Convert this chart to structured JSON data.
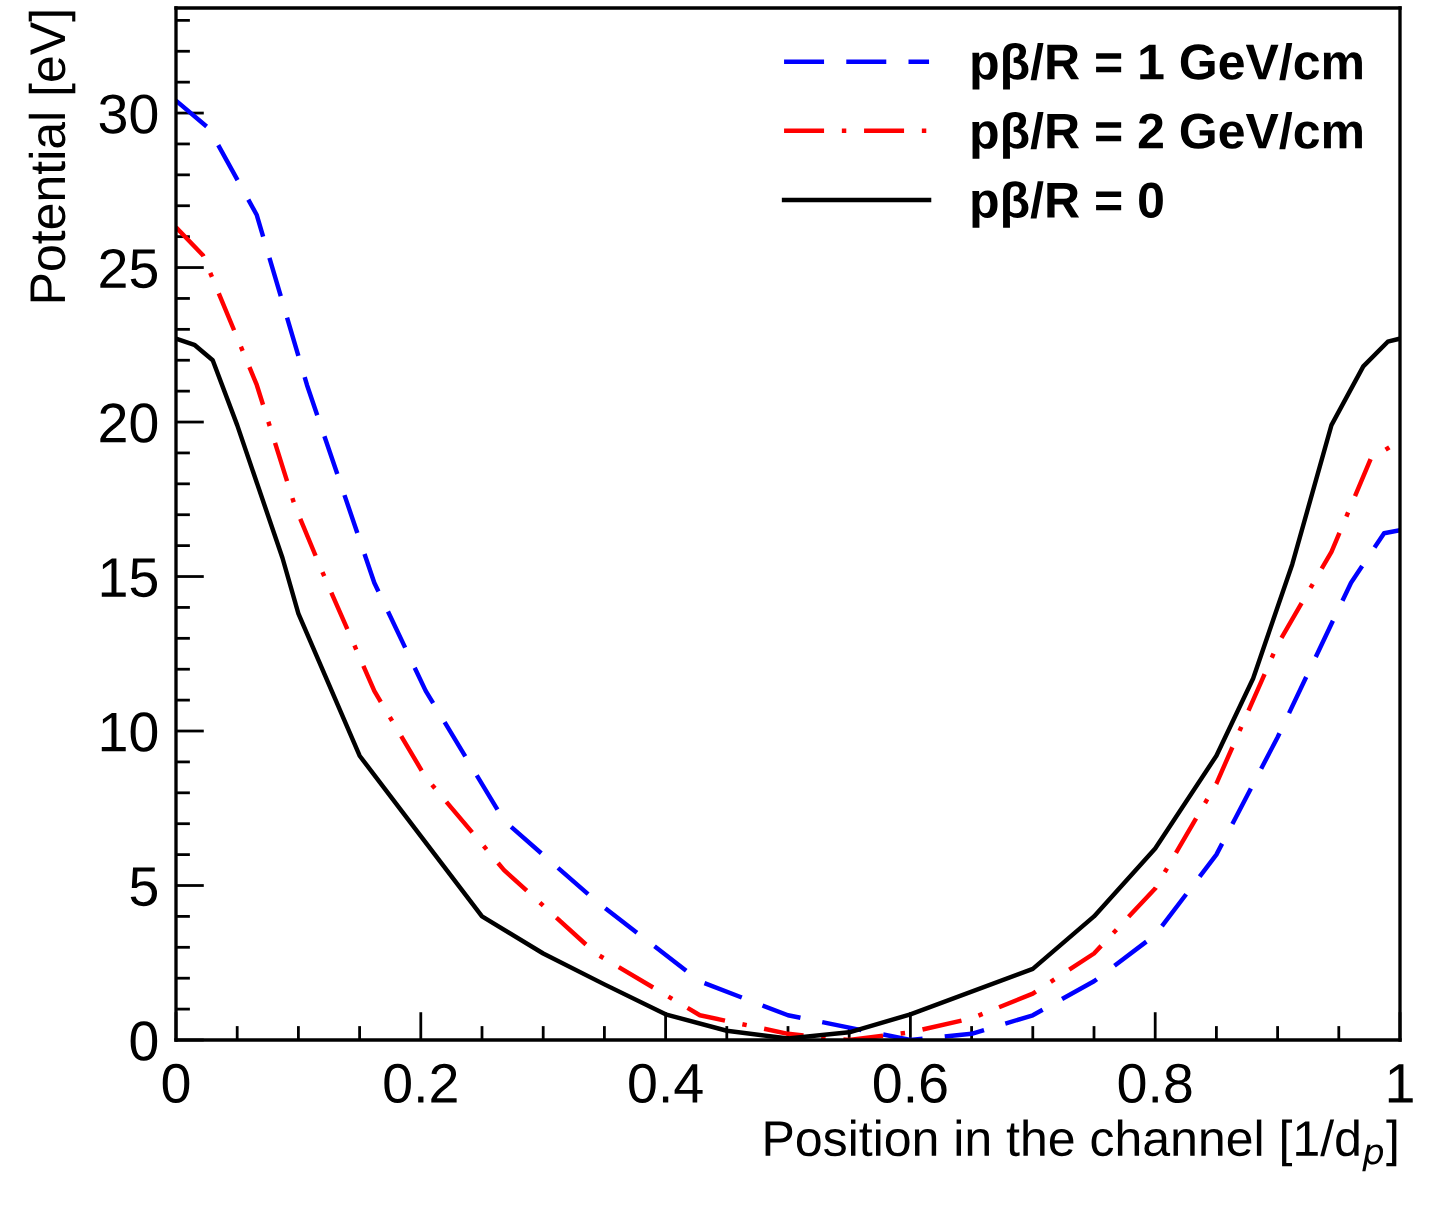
{
  "chart_data": {
    "type": "line",
    "xlabel": "Position in the channel [1/d$_{p}$]",
    "ylabel": "Potential [eV]",
    "xlim": [
      0,
      1
    ],
    "ylim": [
      0,
      33.4
    ],
    "xticks": [
      0,
      {
        "value": 0.05,
        "label": null
      },
      {
        "value": 0.1,
        "label": null
      },
      {
        "value": 0.15,
        "label": null
      },
      {
        "value": 0.2,
        "label": "0.2"
      },
      {
        "value": 0.25,
        "label": null
      },
      {
        "value": 0.3,
        "label": null
      },
      {
        "value": 0.35,
        "label": null
      },
      {
        "value": 0.4,
        "label": "0.4"
      },
      {
        "value": 0.45,
        "label": null
      },
      {
        "value": 0.5,
        "label": null
      },
      {
        "value": 0.55,
        "label": null
      },
      {
        "value": 0.6,
        "label": "0.6"
      },
      {
        "value": 0.65,
        "label": null
      },
      {
        "value": 0.7,
        "label": null
      },
      {
        "value": 0.75,
        "label": null
      },
      {
        "value": 0.8,
        "label": "0.8"
      },
      {
        "value": 0.85,
        "label": null
      },
      {
        "value": 0.9,
        "label": null
      },
      {
        "value": 0.95,
        "label": null
      },
      1
    ],
    "yticks": [
      0,
      {
        "value": 1,
        "label": null
      },
      {
        "value": 2,
        "label": null
      },
      {
        "value": 3,
        "label": null
      },
      {
        "value": 4,
        "label": null
      },
      5,
      {
        "value": 6,
        "label": null
      },
      {
        "value": 7,
        "label": null
      },
      {
        "value": 8,
        "label": null
      },
      {
        "value": 9,
        "label": null
      },
      10,
      {
        "value": 11,
        "label": null
      },
      {
        "value": 12,
        "label": null
      },
      {
        "value": 13,
        "label": null
      },
      {
        "value": 14,
        "label": null
      },
      15,
      {
        "value": 16,
        "label": null
      },
      {
        "value": 17,
        "label": null
      },
      {
        "value": 18,
        "label": null
      },
      {
        "value": 19,
        "label": null
      },
      20,
      {
        "value": 21,
        "label": null
      },
      {
        "value": 22,
        "label": null
      },
      {
        "value": 23,
        "label": null
      },
      {
        "value": 24,
        "label": null
      },
      25,
      {
        "value": 26,
        "label": null
      },
      {
        "value": 27,
        "label": null
      },
      {
        "value": 28,
        "label": null
      },
      {
        "value": 29,
        "label": null
      },
      30,
      {
        "value": 31,
        "label": null
      },
      {
        "value": 32,
        "label": null
      },
      {
        "value": 33,
        "label": null
      }
    ],
    "grid": false,
    "legend": "top right",
    "marker": "none",
    "series": [
      {
        "name": "pβ/R = 1 GeV/cm",
        "color": "#0000ff",
        "line_style": "dashed",
        "x": [
          0,
          0.027,
          0.066,
          0.107,
          0.162,
          0.204,
          0.268,
          0.343,
          0.428,
          0.5,
          0.55,
          0.6,
          0.65,
          0.7,
          0.75,
          0.8,
          0.85,
          0.9,
          0.93,
          0.96,
          0.987,
          1
        ],
        "values": [
          30.4,
          29.5,
          26.7,
          21.2,
          14.8,
          11.3,
          7.1,
          4.5,
          1.9,
          0.8,
          0.4,
          0,
          0.2,
          0.8,
          1.9,
          3.4,
          6.0,
          9.8,
          12.3,
          14.8,
          16.4,
          16.5
        ]
      },
      {
        "name": "pβ/R = 2 GeV/cm",
        "color": "#ff0000",
        "line_style": "dashdot",
        "x": [
          0,
          0.022,
          0.066,
          0.097,
          0.119,
          0.162,
          0.204,
          0.268,
          0.343,
          0.428,
          0.5,
          0.55,
          0.6,
          0.65,
          0.7,
          0.75,
          0.8,
          0.85,
          0.9,
          0.944,
          0.976,
          1
        ],
        "values": [
          26.3,
          25.4,
          21.2,
          17.3,
          15.2,
          11.3,
          8.5,
          5.5,
          2.8,
          0.8,
          0.2,
          0,
          0.25,
          0.7,
          1.5,
          2.8,
          4.9,
          8.3,
          12.8,
          15.8,
          18.8,
          19.4
        ]
      },
      {
        "name": "pβ/R = 0",
        "color": "#000000",
        "line_style": "solid",
        "x": [
          0,
          0.015,
          0.03,
          0.05,
          0.087,
          0.1,
          0.15,
          0.2,
          0.25,
          0.3,
          0.35,
          0.4,
          0.45,
          0.5,
          0.55,
          0.6,
          0.7,
          0.75,
          0.8,
          0.85,
          0.88,
          0.912,
          0.944,
          0.97,
          0.99,
          1
        ],
        "values": [
          22.7,
          22.5,
          22.0,
          19.9,
          15.6,
          13.8,
          9.2,
          6.6,
          4.0,
          2.8,
          1.8,
          0.83,
          0.3,
          0.05,
          0.25,
          0.83,
          2.3,
          4.0,
          6.2,
          9.2,
          11.7,
          15.4,
          19.9,
          21.8,
          22.6,
          22.7
        ]
      }
    ]
  }
}
